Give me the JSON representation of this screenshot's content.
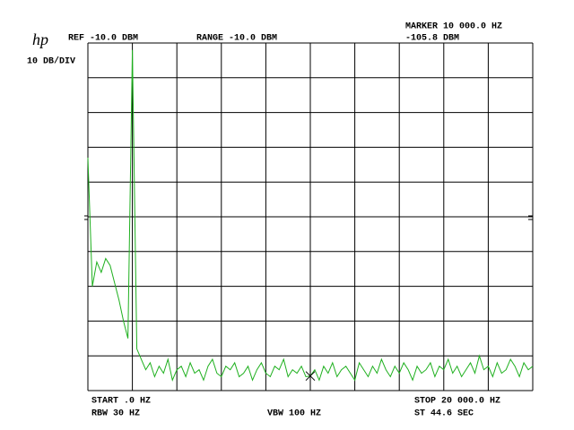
{
  "chart_data": {
    "type": "line",
    "logo": "hp",
    "ref_label": "REF -10.0 DBM",
    "range_label": "RANGE -10.0 DBM",
    "scale_label": "10 DB/DIV",
    "marker": {
      "label": "MARKER 10 000.0 HZ",
      "value_label": "-105.8 DBM",
      "x": 10000,
      "y": -105.8
    },
    "start_label": "START .0 HZ",
    "stop_label": "STOP 20 000.0 HZ",
    "rbw_label": "RBW 30 HZ",
    "vbw_label": "VBW 100 HZ",
    "sweep_label": "ST 44.6 SEC",
    "xlim": [
      0,
      20000
    ],
    "ylim": [
      -110,
      -10
    ],
    "xticks": [
      0,
      2000,
      4000,
      6000,
      8000,
      10000,
      12000,
      14000,
      16000,
      18000,
      20000
    ],
    "yticks": [
      -110,
      -100,
      -90,
      -80,
      -70,
      -60,
      -50,
      -40,
      -30,
      -20,
      -10
    ],
    "grid": true,
    "x": [
      0,
      200,
      400,
      600,
      800,
      1000,
      1200,
      1400,
      1600,
      1800,
      2000,
      2200,
      2400,
      2600,
      2800,
      3000,
      3200,
      3400,
      3600,
      3800,
      4000,
      4200,
      4400,
      4600,
      4800,
      5000,
      5200,
      5400,
      5600,
      5800,
      6000,
      6200,
      6400,
      6600,
      6800,
      7000,
      7200,
      7400,
      7600,
      7800,
      8000,
      8200,
      8400,
      8600,
      8800,
      9000,
      9200,
      9400,
      9600,
      9800,
      10000,
      10200,
      10400,
      10600,
      10800,
      11000,
      11200,
      11400,
      11600,
      11800,
      12000,
      12200,
      12400,
      12600,
      12800,
      13000,
      13200,
      13400,
      13600,
      13800,
      14000,
      14200,
      14400,
      14600,
      14800,
      15000,
      15200,
      15400,
      15600,
      15800,
      16000,
      16200,
      16400,
      16600,
      16800,
      17000,
      17200,
      17400,
      17600,
      17800,
      18000,
      18200,
      18400,
      18600,
      18800,
      19000,
      19200,
      19400,
      19600,
      19800,
      20000
    ],
    "series": [
      {
        "color": "#1fb01f",
        "values": [
          -43,
          -80,
          -73,
          -76,
          -72,
          -74,
          -79,
          -84,
          -90,
          -95,
          -12,
          -98,
          -101,
          -104,
          -102,
          -106,
          -103,
          -105,
          -101,
          -107,
          -104,
          -103,
          -106,
          -102,
          -105,
          -104,
          -107,
          -103,
          -101,
          -105,
          -106,
          -103,
          -104,
          -102,
          -106,
          -105,
          -103,
          -107,
          -104,
          -102,
          -105,
          -106,
          -103,
          -104,
          -101,
          -106,
          -104,
          -105,
          -103,
          -106,
          -105.8,
          -104,
          -107,
          -103,
          -105,
          -102,
          -106,
          -104,
          -103,
          -105,
          -107,
          -102,
          -104,
          -106,
          -103,
          -105,
          -101,
          -104,
          -106,
          -103,
          -105,
          -102,
          -104,
          -107,
          -103,
          -105,
          -104,
          -102,
          -106,
          -103,
          -104,
          -101,
          -105,
          -103,
          -106,
          -104,
          -102,
          -105,
          -100,
          -104,
          -103,
          -106,
          -102,
          -105,
          -104,
          -101,
          -103,
          -106,
          -102,
          -104,
          -103
        ]
      }
    ]
  }
}
